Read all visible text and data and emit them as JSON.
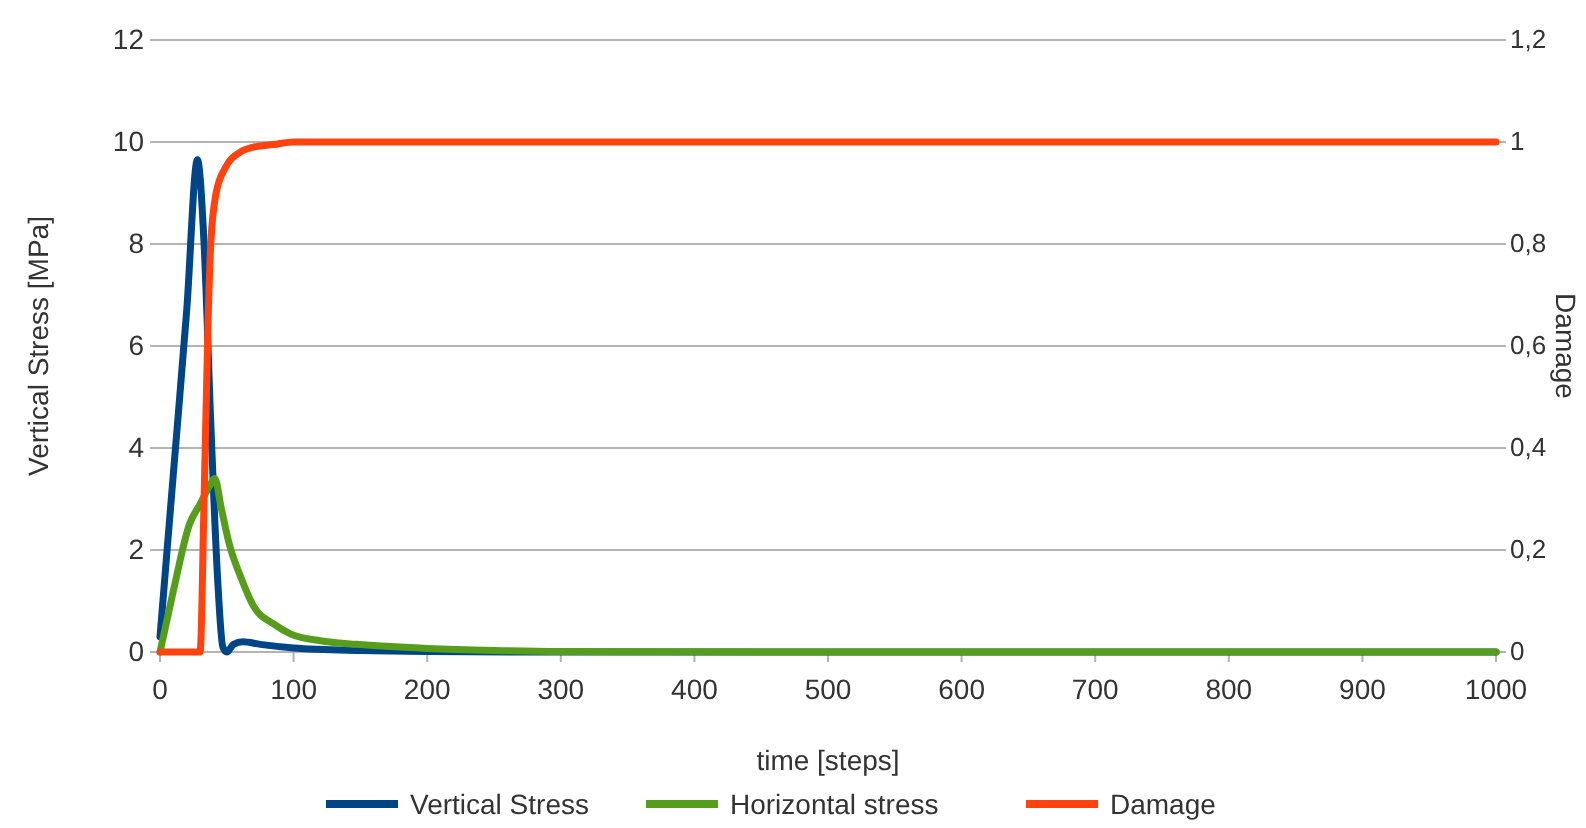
{
  "chart_data": {
    "type": "line",
    "xlabel": "time [steps]",
    "ylabel": "Vertical Stress [MPa]",
    "y2label": "Damage",
    "xlim": [
      0,
      1000
    ],
    "xticks": [
      0,
      100,
      200,
      300,
      400,
      500,
      600,
      700,
      800,
      900,
      1000
    ],
    "ylim": [
      0,
      12
    ],
    "yticks": [
      0,
      2,
      4,
      6,
      8,
      10,
      12
    ],
    "y2lim": [
      0,
      1.2
    ],
    "y2ticks": [
      {
        "value": 0,
        "label": "0"
      },
      {
        "value": 0.2,
        "label": "0,2"
      },
      {
        "value": 0.4,
        "label": "0,4"
      },
      {
        "value": 0.6,
        "label": "0,6"
      },
      {
        "value": 0.8,
        "label": "0,8"
      },
      {
        "value": 1,
        "label": "1"
      },
      {
        "value": 1.2,
        "label": "1,2"
      }
    ],
    "grid": "y",
    "legend": "bottom",
    "marker": "none",
    "line_style": "solid",
    "series": [
      {
        "name": "Vertical Stress",
        "color": "#004586",
        "x": [
          0,
          10,
          20,
          28,
          33,
          38,
          43,
          47,
          50,
          55,
          62,
          75,
          100,
          150,
          200,
          300,
          500,
          1000
        ],
        "values": [
          0.3,
          3.5,
          6.7,
          9.65,
          8.0,
          4.5,
          1.5,
          0.1,
          0,
          0.15,
          0.2,
          0.15,
          0.08,
          0.03,
          0.01,
          0,
          0,
          0
        ]
      },
      {
        "name": "Horizontal stress",
        "color": "#579d1c",
        "x": [
          0,
          10,
          22,
          30,
          36,
          41,
          46,
          52,
          60,
          70,
          85,
          98,
          120,
          147,
          200,
          250,
          300,
          500,
          1000
        ],
        "values": [
          0,
          1.2,
          2.5,
          2.9,
          3.2,
          3.4,
          2.8,
          2.1,
          1.5,
          0.9,
          0.55,
          0.35,
          0.22,
          0.15,
          0.07,
          0.03,
          0.01,
          0,
          0
        ]
      },
      {
        "name": "Damage",
        "color": "#ff420e",
        "axis": "y2",
        "x": [
          0,
          30,
          33,
          36,
          38,
          42,
          49,
          60,
          70,
          85,
          100,
          200,
          1000
        ],
        "values": [
          0,
          0,
          0.3,
          0.65,
          0.8,
          0.9,
          0.95,
          0.98,
          0.99,
          0.995,
          1,
          1,
          1
        ]
      }
    ]
  }
}
